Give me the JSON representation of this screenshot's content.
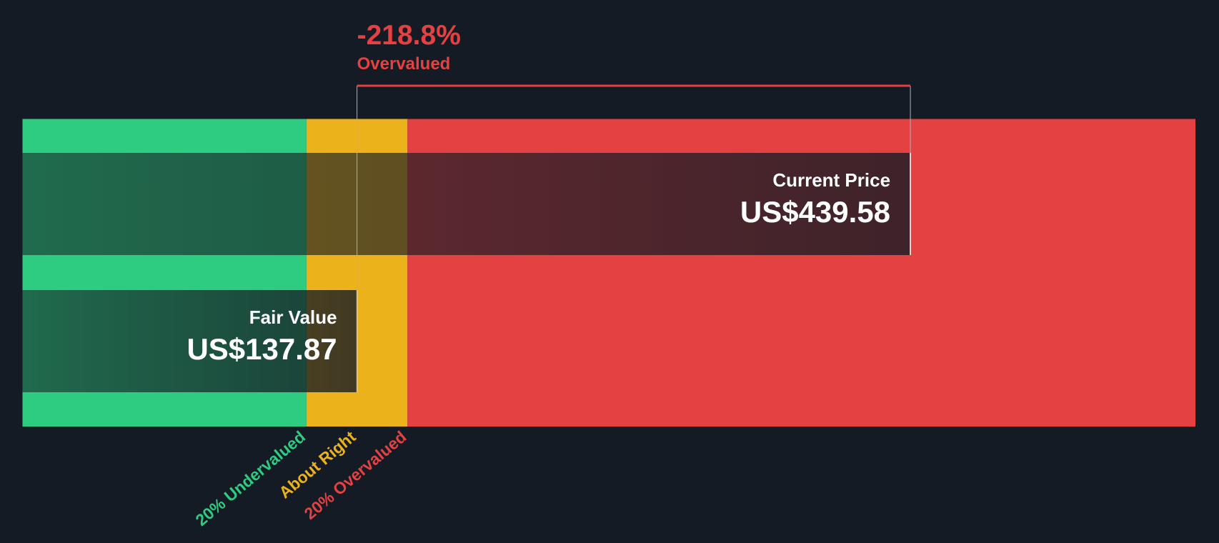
{
  "chart_data": {
    "type": "valuation",
    "headline": {
      "value": -218.8,
      "value_label": "-218.8%",
      "text": "Overvalued"
    },
    "xlim": [
      -44.5,
      595
    ],
    "zones": [
      {
        "label": "20% Undervalued",
        "color": "#2ecc80",
        "from": -44.5,
        "to": 110.3
      },
      {
        "label": "About Right",
        "color": "#ecb21c",
        "from": 110.3,
        "to": 165.4
      },
      {
        "label": "20% Overvalued",
        "color": "#e44142",
        "from": 165.4,
        "to": 595
      }
    ],
    "bars": [
      {
        "name": "Current Price",
        "value": 439.58,
        "value_label": "US$439.58"
      },
      {
        "name": "Fair Value",
        "value": 137.87,
        "value_label": "US$137.87"
      }
    ]
  }
}
